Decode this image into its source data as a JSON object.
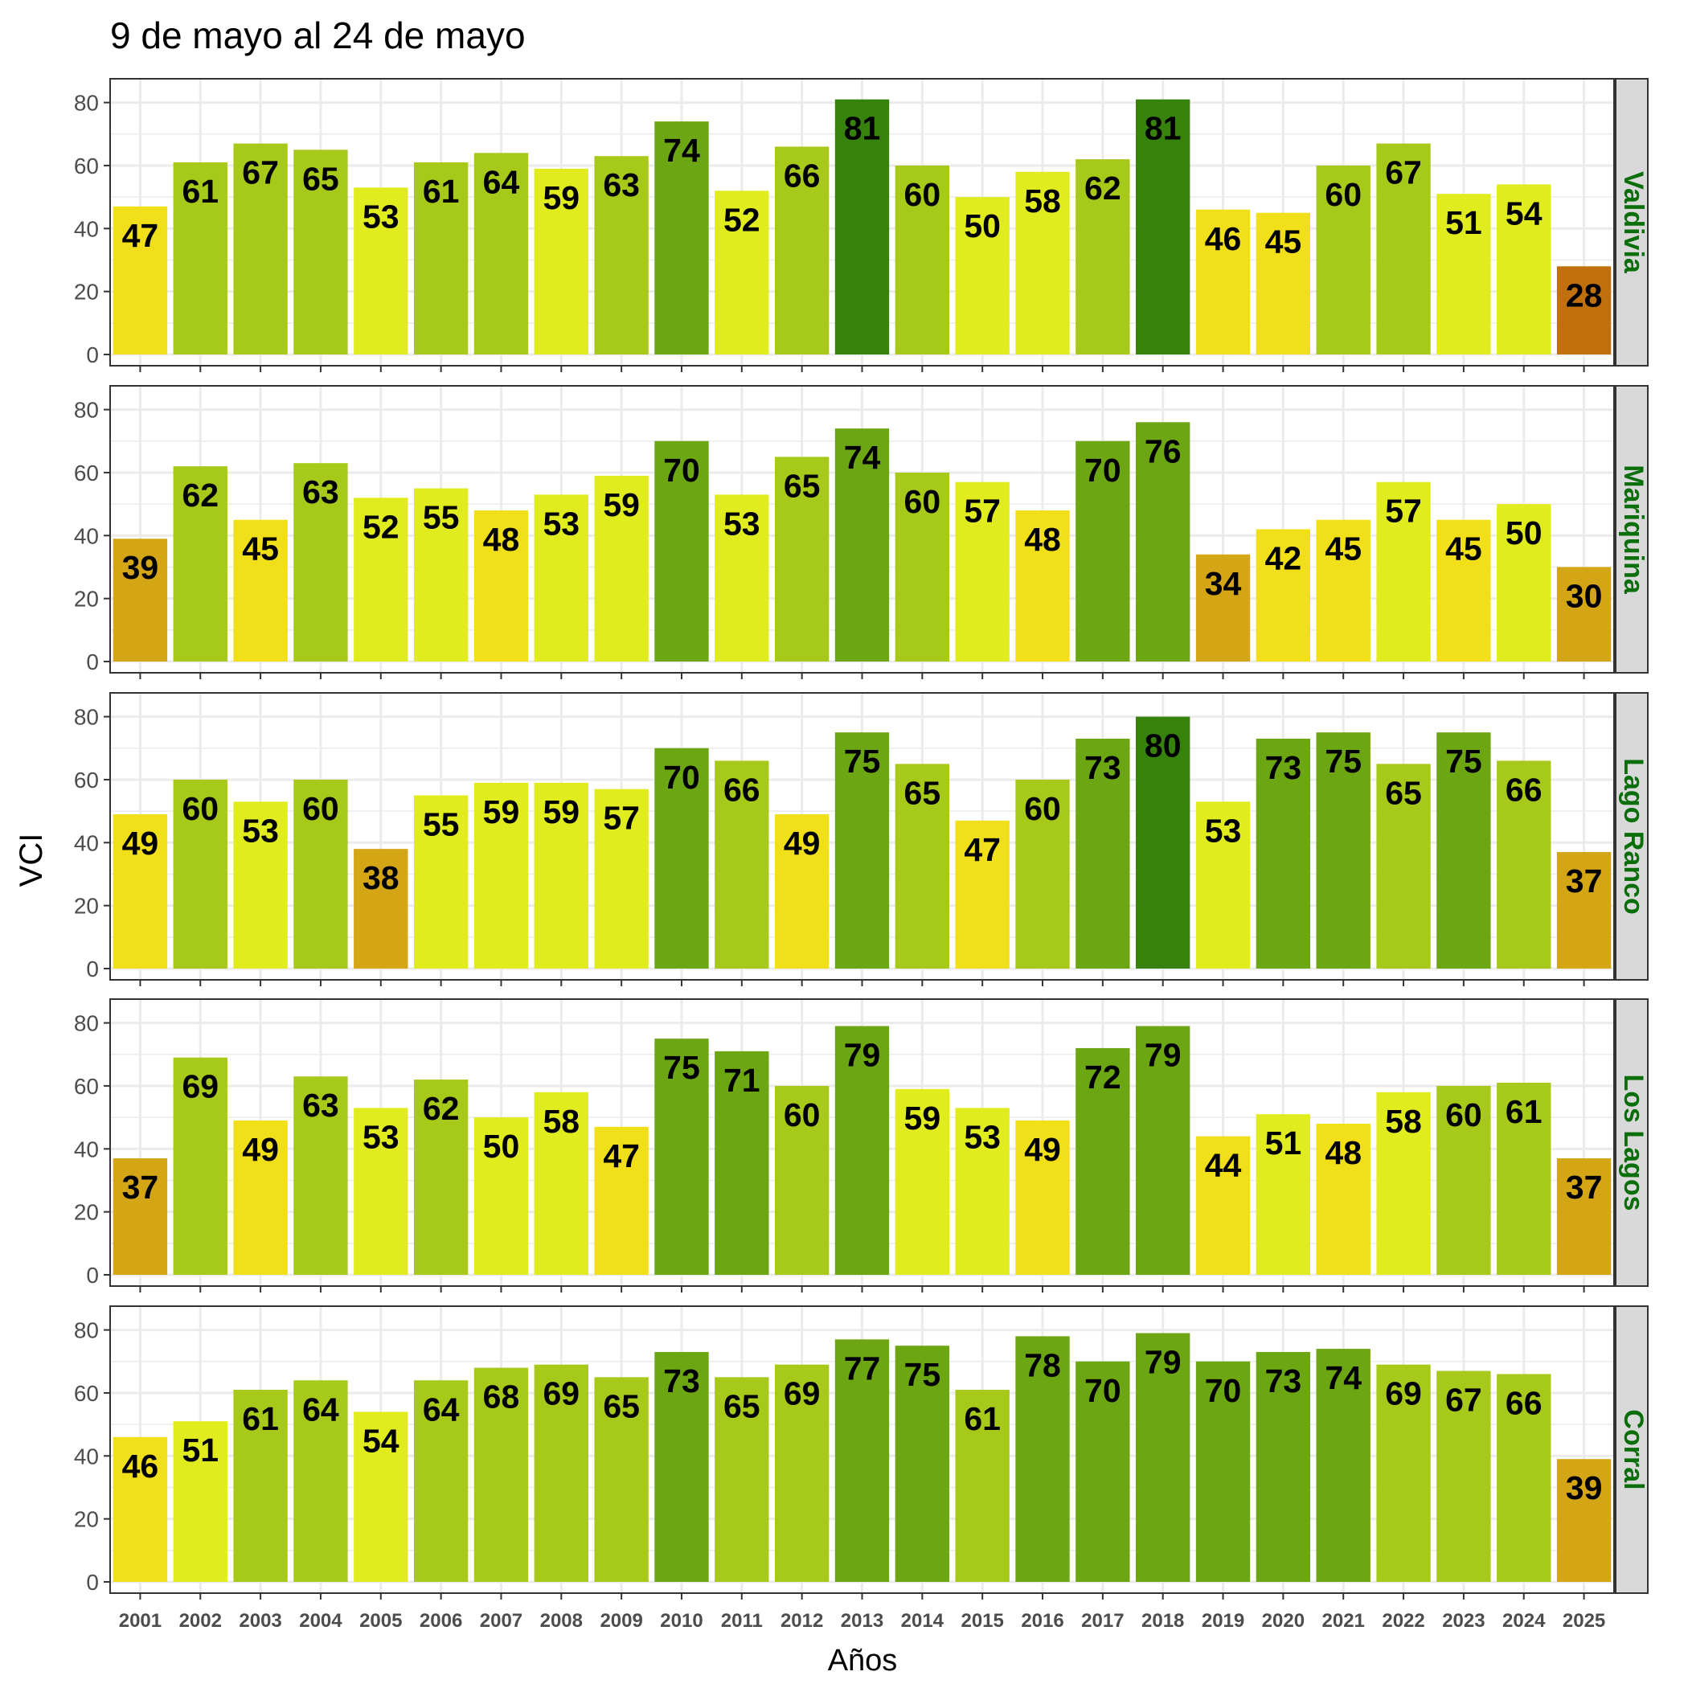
{
  "chart_data": {
    "type": "bar",
    "title": "9 de mayo al 24 de mayo",
    "xlabel": "Años",
    "ylabel": "VCI",
    "ylim": [
      0,
      85
    ],
    "yticks": [
      0,
      20,
      40,
      60,
      80
    ],
    "grid": true,
    "facet_layout": "stacked rows, strip labels on the right",
    "categories": [
      "2001",
      "2002",
      "2003",
      "2004",
      "2005",
      "2006",
      "2007",
      "2008",
      "2009",
      "2010",
      "2011",
      "2012",
      "2013",
      "2014",
      "2015",
      "2016",
      "2017",
      "2018",
      "2019",
      "2020",
      "2021",
      "2022",
      "2023",
      "2024",
      "2025"
    ],
    "panels": [
      {
        "name": "Valdivia",
        "values": [
          47,
          61,
          67,
          65,
          53,
          61,
          64,
          59,
          63,
          74,
          52,
          66,
          81,
          60,
          50,
          58,
          62,
          81,
          46,
          45,
          60,
          67,
          51,
          54,
          28
        ]
      },
      {
        "name": "Mariquina",
        "values": [
          39,
          62,
          45,
          63,
          52,
          55,
          48,
          53,
          59,
          70,
          53,
          65,
          74,
          60,
          57,
          48,
          70,
          76,
          34,
          42,
          45,
          57,
          45,
          50,
          30
        ]
      },
      {
        "name": "Lago Ranco",
        "values": [
          49,
          60,
          53,
          60,
          38,
          55,
          59,
          59,
          57,
          70,
          66,
          49,
          75,
          65,
          47,
          60,
          73,
          80,
          53,
          73,
          75,
          65,
          75,
          66,
          37
        ]
      },
      {
        "name": "Los Lagos",
        "values": [
          37,
          69,
          49,
          63,
          53,
          62,
          50,
          58,
          47,
          75,
          71,
          60,
          79,
          59,
          53,
          49,
          72,
          79,
          44,
          51,
          48,
          58,
          60,
          61,
          37
        ]
      },
      {
        "name": "Corral",
        "values": [
          46,
          51,
          61,
          64,
          54,
          64,
          68,
          69,
          65,
          73,
          65,
          69,
          77,
          75,
          61,
          78,
          70,
          79,
          70,
          73,
          74,
          69,
          67,
          66,
          39
        ]
      }
    ],
    "color_scale": [
      {
        "min": 0,
        "max": 30,
        "color": "#c0700c"
      },
      {
        "min": 30,
        "max": 40,
        "color": "#d4a514"
      },
      {
        "min": 40,
        "max": 50,
        "color": "#f1df19"
      },
      {
        "min": 50,
        "max": 60,
        "color": "#e1ec1e"
      },
      {
        "min": 60,
        "max": 70,
        "color": "#a7c91a"
      },
      {
        "min": 70,
        "max": 80,
        "color": "#6ca713"
      },
      {
        "min": 80,
        "max": 101,
        "color": "#36820c"
      }
    ],
    "strip_label_color": "#0a6e0a",
    "strip_background": "#d9d9d9",
    "grid_color": "#ebebeb"
  }
}
